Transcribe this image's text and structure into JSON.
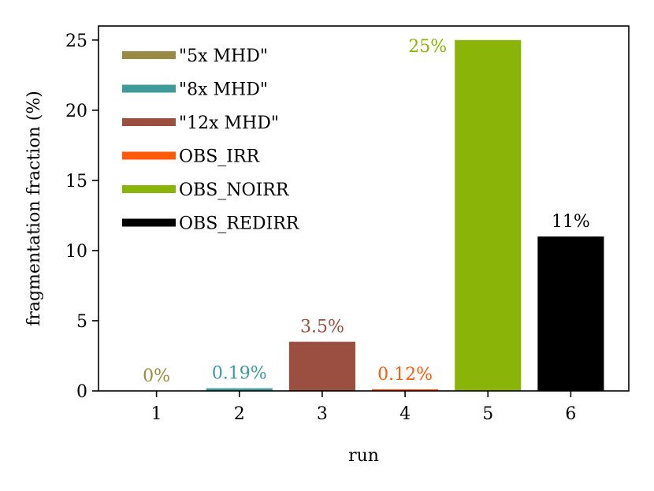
{
  "chart_data": {
    "type": "bar",
    "xlabel": "run",
    "ylabel": "fragmentation fraction (%)",
    "ylim": [
      0,
      26
    ],
    "xlim": [
      0.3,
      6.7
    ],
    "yticks": [
      0,
      5,
      10,
      15,
      20,
      25
    ],
    "grid": false,
    "legend_position": "upper-left",
    "series": [
      {
        "name": "\"5x MHD\"",
        "x": 1,
        "value": 0,
        "label": "0%",
        "color": "#9a8b44"
      },
      {
        "name": "\"8x MHD\"",
        "x": 2,
        "value": 0.19,
        "label": "0.19%",
        "color": "#3f9a9a"
      },
      {
        "name": "\"12x MHD\"",
        "x": 3,
        "value": 3.5,
        "label": "3.5%",
        "color": "#9b4f41"
      },
      {
        "name": "OBS_IRR",
        "x": 4,
        "value": 0.12,
        "label": "0.12%",
        "color": "#ff5a0a"
      },
      {
        "name": "OBS_NOIRR",
        "x": 5,
        "value": 25,
        "label": "25%",
        "color": "#8ab508"
      },
      {
        "name": "OBS_REDIRR",
        "x": 6,
        "value": 11,
        "label": "11%",
        "color": "#000000"
      }
    ]
  }
}
